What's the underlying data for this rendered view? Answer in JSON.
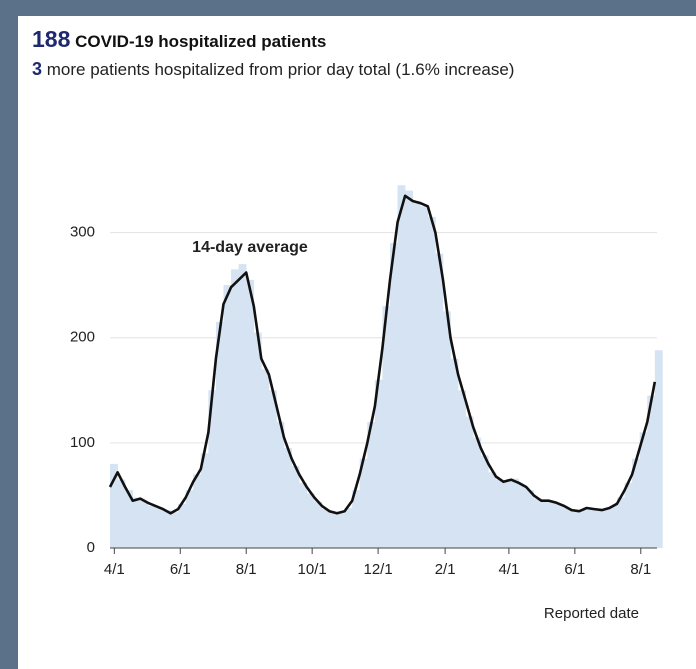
{
  "chart_data": {
    "type": "bar_line",
    "title_value": "188",
    "title": "COVID-19 hospitalized patients",
    "subtitle_value": "3",
    "subtitle": "more patients hospitalized from prior day total (1.6% increase)",
    "x_label": "Reported date",
    "x": [
      0,
      7,
      14,
      21,
      28,
      35,
      42,
      49,
      56,
      63,
      70,
      77,
      84,
      91,
      98,
      105,
      112,
      119,
      126,
      133,
      140,
      147,
      154,
      161,
      168,
      175,
      182,
      189,
      196,
      203,
      210,
      217,
      224,
      231,
      238,
      245,
      252,
      259,
      266,
      273,
      280,
      287,
      294,
      301,
      308,
      315,
      322,
      329,
      336,
      343,
      350,
      357,
      364,
      371,
      378,
      385,
      392,
      399,
      406,
      413,
      420,
      427,
      434,
      441,
      448,
      455,
      462,
      469,
      476,
      483,
      490,
      497,
      504
    ],
    "xlim": [
      0,
      506
    ],
    "xticks": [
      {
        "value": 4,
        "label": "4/1"
      },
      {
        "value": 65,
        "label": "6/1"
      },
      {
        "value": 126,
        "label": "8/1"
      },
      {
        "value": 187,
        "label": "10/1"
      },
      {
        "value": 248,
        "label": "12/1"
      },
      {
        "value": 310,
        "label": "2/1"
      },
      {
        "value": 369,
        "label": "4/1"
      },
      {
        "value": 430,
        "label": "6/1"
      },
      {
        "value": 491,
        "label": "8/1"
      }
    ],
    "ylim": [
      0,
      350
    ],
    "yticks": [
      0,
      100,
      200,
      300
    ],
    "grid": true,
    "series": [
      {
        "type": "bar",
        "color": "#d5e3f2",
        "values": [
          80,
          65,
          55,
          48,
          45,
          40,
          38,
          36,
          34,
          42,
          55,
          70,
          90,
          150,
          215,
          250,
          265,
          270,
          255,
          205,
          170,
          150,
          120,
          95,
          78,
          62,
          52,
          44,
          37,
          34,
          33,
          38,
          55,
          85,
          120,
          160,
          230,
          290,
          345,
          340,
          330,
          325,
          315,
          280,
          225,
          180,
          150,
          125,
          105,
          88,
          72,
          65,
          64,
          66,
          60,
          55,
          47,
          44,
          44,
          42,
          38,
          35,
          36,
          38,
          37,
          37,
          40,
          48,
          62,
          85,
          110,
          145,
          188
        ]
      },
      {
        "type": "line",
        "name": "14-day average",
        "color": "#111111",
        "values": [
          58,
          72,
          58,
          45,
          47,
          43,
          40,
          37,
          33,
          37,
          48,
          63,
          75,
          110,
          180,
          232,
          248,
          255,
          262,
          230,
          180,
          165,
          135,
          105,
          85,
          70,
          58,
          48,
          40,
          35,
          33,
          35,
          45,
          70,
          100,
          135,
          190,
          255,
          310,
          335,
          330,
          328,
          325,
          300,
          255,
          200,
          165,
          140,
          115,
          95,
          80,
          68,
          63,
          65,
          62,
          58,
          50,
          45,
          45,
          43,
          40,
          36,
          35,
          38,
          37,
          36,
          38,
          42,
          55,
          70,
          95,
          120,
          158
        ]
      }
    ]
  }
}
